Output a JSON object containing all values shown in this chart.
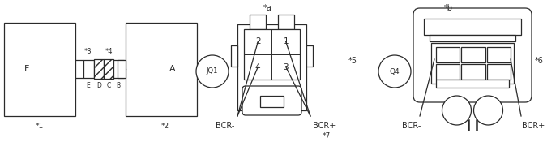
{
  "bg_color": "#ffffff",
  "line_color": "#2a2a2a",
  "labels": {
    "star1": "*1",
    "star2": "*2",
    "star3": "*3",
    "star4": "*4",
    "star5": "*5",
    "star6": "*6",
    "star7": "*7",
    "stara": "*a",
    "starb": "*b",
    "F": "F",
    "A": "A",
    "E": "E",
    "D": "D",
    "C": "C",
    "B": "B",
    "JQ1": "JQ1",
    "Q4": "Q4",
    "BCR_minus_left": "BCR-",
    "BCR_plus_left": "BCR+",
    "BCR_minus_right": "BCR-",
    "BCR_plus_right": "BCR+",
    "n1": "1",
    "n2": "2",
    "n3": "3",
    "n4": "4"
  },
  "layout": {
    "fig_w": 6.91,
    "fig_h": 1.75,
    "dpi": 100
  }
}
